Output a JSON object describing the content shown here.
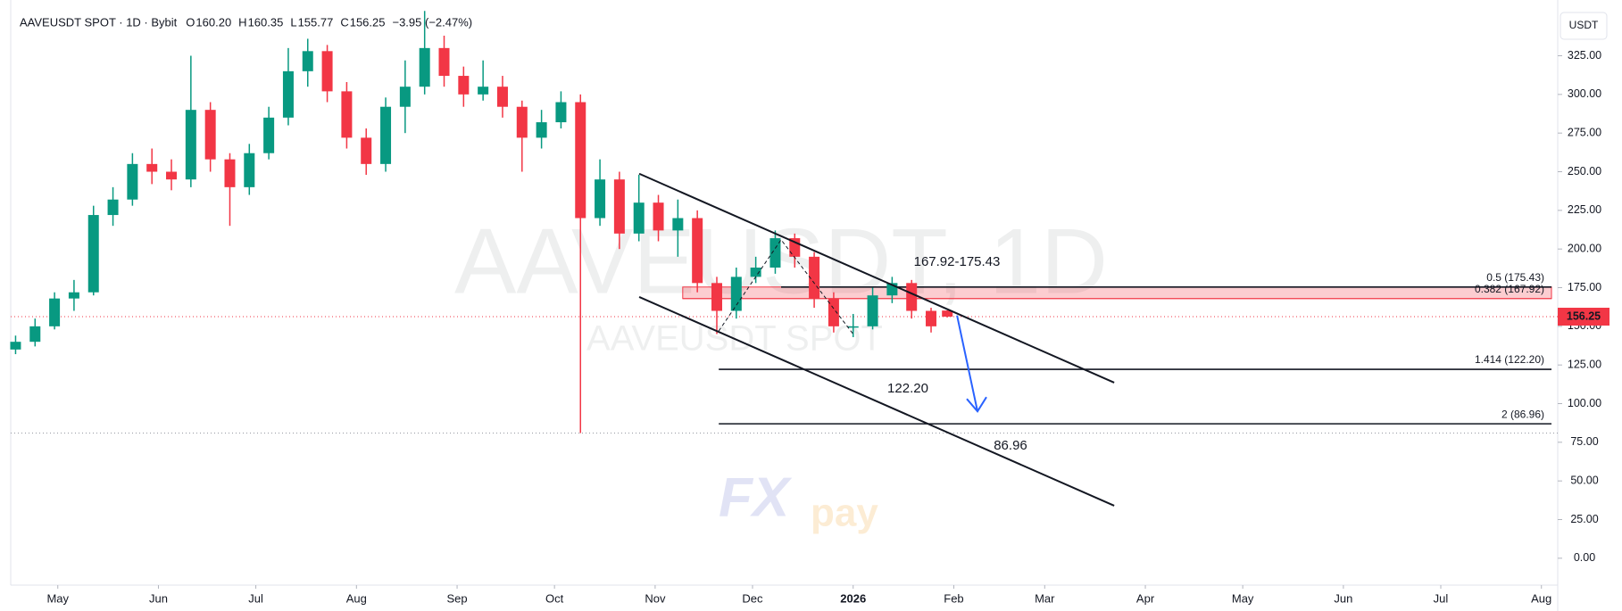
{
  "chart_data": {
    "type": "candlestick",
    "title": "AAVEUSDT SPOT · 1D · Bybit",
    "ohlc": [
      {
        "k": "O",
        "v": "160.20"
      },
      {
        "k": "H",
        "v": "160.35"
      },
      {
        "k": "L",
        "v": "155.77"
      },
      {
        "k": "C",
        "v": "156.25"
      }
    ],
    "change": "−3.95 (−2.47%)",
    "currency": "USDT",
    "watermark": "AAVEUSDT, 1D",
    "watermark_sub": "AAVEUSDT SPOT",
    "logo": [
      "FX",
      "pay"
    ],
    "last_price_label": "156.25",
    "up_color": "#089981",
    "down_color": "#f23645",
    "grid": false,
    "xlim": [
      -14.5,
      460.1
    ],
    "ylim": [
      -17.4,
      355.3
    ],
    "xticks": [
      {
        "value": 0,
        "label": "May"
      },
      {
        "value": 31,
        "label": "Jun"
      },
      {
        "value": 61,
        "label": "Jul"
      },
      {
        "value": 92,
        "label": "Aug"
      },
      {
        "value": 123,
        "label": "Sep"
      },
      {
        "value": 153,
        "label": "Oct"
      },
      {
        "value": 184,
        "label": "Nov"
      },
      {
        "value": 214,
        "label": "Dec"
      },
      {
        "value": 245,
        "label": "2026"
      },
      {
        "value": 276,
        "label": "Feb"
      },
      {
        "value": 304,
        "label": "Mar"
      },
      {
        "value": 335,
        "label": "Apr"
      },
      {
        "value": 365,
        "label": "May"
      },
      {
        "value": 396,
        "label": "Jun"
      },
      {
        "value": 426,
        "label": "Jul"
      },
      {
        "value": 457,
        "label": "Aug"
      }
    ],
    "yticks": [
      {
        "value": 0,
        "label": "0.00"
      },
      {
        "value": 25,
        "label": "25.00"
      },
      {
        "value": 50,
        "label": "50.00"
      },
      {
        "value": 75,
        "label": "75.00"
      },
      {
        "value": 100,
        "label": "100.00"
      },
      {
        "value": 125,
        "label": "125.00"
      },
      {
        "value": 150,
        "label": "150.00"
      },
      {
        "value": 175,
        "label": "175.00"
      },
      {
        "value": 200,
        "label": "200.00"
      },
      {
        "value": 225,
        "label": "225.00"
      },
      {
        "value": 250,
        "label": "250.00"
      },
      {
        "value": 275,
        "label": "275.00"
      },
      {
        "value": 300,
        "label": "300.00"
      },
      {
        "value": 325,
        "label": "325.00"
      }
    ],
    "candles": [
      {
        "x": -13,
        "open": 135,
        "high": 144,
        "low": 132,
        "close": 140
      },
      {
        "x": -7,
        "open": 140,
        "high": 155,
        "low": 137,
        "close": 150
      },
      {
        "x": -1,
        "open": 150,
        "high": 172,
        "low": 148,
        "close": 168
      },
      {
        "x": 5,
        "open": 168,
        "high": 180,
        "low": 160,
        "close": 172
      },
      {
        "x": 11,
        "open": 172,
        "high": 228,
        "low": 170,
        "close": 222
      },
      {
        "x": 17,
        "open": 222,
        "high": 240,
        "low": 215,
        "close": 232
      },
      {
        "x": 23,
        "open": 232,
        "high": 262,
        "low": 228,
        "close": 255
      },
      {
        "x": 29,
        "open": 255,
        "high": 265,
        "low": 242,
        "close": 250
      },
      {
        "x": 35,
        "open": 250,
        "high": 258,
        "low": 238,
        "close": 245
      },
      {
        "x": 41,
        "open": 245,
        "high": 325,
        "low": 240,
        "close": 290
      },
      {
        "x": 47,
        "open": 290,
        "high": 295,
        "low": 250,
        "close": 258
      },
      {
        "x": 53,
        "open": 258,
        "high": 262,
        "low": 215,
        "close": 240
      },
      {
        "x": 59,
        "open": 240,
        "high": 268,
        "low": 235,
        "close": 262
      },
      {
        "x": 65,
        "open": 262,
        "high": 292,
        "low": 258,
        "close": 285
      },
      {
        "x": 71,
        "open": 285,
        "high": 330,
        "low": 280,
        "close": 315
      },
      {
        "x": 77,
        "open": 315,
        "high": 336,
        "low": 305,
        "close": 328
      },
      {
        "x": 83,
        "open": 328,
        "high": 332,
        "low": 295,
        "close": 302
      },
      {
        "x": 89,
        "open": 302,
        "high": 308,
        "low": 265,
        "close": 272
      },
      {
        "x": 95,
        "open": 272,
        "high": 278,
        "low": 248,
        "close": 255
      },
      {
        "x": 101,
        "open": 255,
        "high": 298,
        "low": 250,
        "close": 292
      },
      {
        "x": 107,
        "open": 292,
        "high": 322,
        "low": 275,
        "close": 305
      },
      {
        "x": 113,
        "open": 305,
        "high": 354,
        "low": 300,
        "close": 330
      },
      {
        "x": 119,
        "open": 330,
        "high": 338,
        "low": 305,
        "close": 312
      },
      {
        "x": 125,
        "open": 312,
        "high": 318,
        "low": 292,
        "close": 300
      },
      {
        "x": 131,
        "open": 300,
        "high": 322,
        "low": 296,
        "close": 305
      },
      {
        "x": 137,
        "open": 305,
        "high": 312,
        "low": 285,
        "close": 292
      },
      {
        "x": 143,
        "open": 292,
        "high": 296,
        "low": 250,
        "close": 272
      },
      {
        "x": 149,
        "open": 272,
        "high": 290,
        "low": 265,
        "close": 282
      },
      {
        "x": 155,
        "open": 282,
        "high": 302,
        "low": 278,
        "close": 295
      },
      {
        "x": 161,
        "open": 295,
        "high": 300,
        "low": 81,
        "close": 220
      },
      {
        "x": 167,
        "open": 220,
        "high": 258,
        "low": 215,
        "close": 245
      },
      {
        "x": 173,
        "open": 245,
        "high": 250,
        "low": 200,
        "close": 210
      },
      {
        "x": 179,
        "open": 210,
        "high": 248,
        "low": 205,
        "close": 230
      },
      {
        "x": 185,
        "open": 230,
        "high": 235,
        "low": 205,
        "close": 212
      },
      {
        "x": 191,
        "open": 212,
        "high": 232,
        "low": 195,
        "close": 220
      },
      {
        "x": 197,
        "open": 220,
        "high": 225,
        "low": 172,
        "close": 178
      },
      {
        "x": 203,
        "open": 178,
        "high": 182,
        "low": 145,
        "close": 160
      },
      {
        "x": 209,
        "open": 160,
        "high": 188,
        "low": 155,
        "close": 182
      },
      {
        "x": 215,
        "open": 182,
        "high": 195,
        "low": 178,
        "close": 188
      },
      {
        "x": 221,
        "open": 188,
        "high": 212,
        "low": 184,
        "close": 207
      },
      {
        "x": 227,
        "open": 207,
        "high": 210,
        "low": 188,
        "close": 195
      },
      {
        "x": 233,
        "open": 195,
        "high": 198,
        "low": 162,
        "close": 168
      },
      {
        "x": 239,
        "open": 168,
        "high": 172,
        "low": 146,
        "close": 150
      },
      {
        "x": 245,
        "open": 150,
        "high": 158,
        "low": 143,
        "close": 150
      },
      {
        "x": 251,
        "open": 150,
        "high": 175,
        "low": 148,
        "close": 170
      },
      {
        "x": 257,
        "open": 170,
        "high": 182,
        "low": 165,
        "close": 178
      },
      {
        "x": 263,
        "open": 178,
        "high": 180,
        "low": 155,
        "close": 160
      },
      {
        "x": 269,
        "open": 160,
        "high": 162,
        "low": 146,
        "close": 150
      },
      {
        "x": 274,
        "open": 160.2,
        "high": 160.35,
        "low": 155.77,
        "close": 156.25
      }
    ],
    "levels": [
      {
        "value": 175.43,
        "label": "0.5 (175.43)",
        "from": 222.8
      },
      {
        "value": 167.92,
        "label": "0.382 (167.92)",
        "from": 192.5
      },
      {
        "value": 122.2,
        "label": "1.414 (122.20)",
        "from": 203.6
      },
      {
        "value": 86.96,
        "label": "2 (86.96)",
        "from": 203.6
      }
    ],
    "zone_label": "167.92-175.43",
    "target_labels": [
      "122.20",
      "86.96"
    ],
    "trendlines": [
      {
        "x1": 179.1,
        "y1": 248.7,
        "x2": 325.4,
        "y2": 113.6
      },
      {
        "x1": 179.1,
        "y1": 169,
        "x2": 325.4,
        "y2": 34
      }
    ],
    "fib_path": {
      "x": [
        203.6,
        222.8,
        245
      ],
      "y": [
        147,
        206,
        145
      ]
    },
    "arrow": {
      "x1": 277,
      "y1": 157,
      "x2": 283.3,
      "y2": 95
    }
  }
}
